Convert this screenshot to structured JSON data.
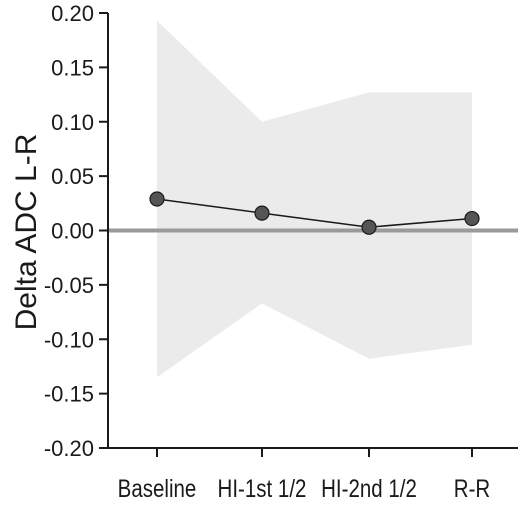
{
  "chart_data": {
    "type": "line",
    "title": "",
    "xlabel": "",
    "ylabel": "Delta ADC L-R",
    "categories": [
      "Baseline",
      "HI-1st 1/2",
      "HI-2nd 1/2",
      "R-R"
    ],
    "series": [
      {
        "values": [
          0.029,
          0.016,
          0.003,
          0.011
        ]
      }
    ],
    "band": {
      "upper": [
        0.193,
        0.1,
        0.127,
        0.127
      ],
      "lower": [
        -0.135,
        -0.067,
        -0.118,
        -0.105
      ]
    },
    "reference_line": 0.0,
    "ylim": [
      -0.2,
      0.2
    ],
    "yticks": [
      "-0.20",
      "-0.15",
      "-0.10",
      "-0.05",
      "0.00",
      "0.05",
      "0.10",
      "0.15",
      "0.20"
    ],
    "grid": false,
    "legend": "none",
    "colors": {
      "band": "#ebebeb",
      "line": "#1a1a1a",
      "marker": "#555555",
      "reference_line": "#9a9a9a",
      "axis": "#1a1a1a"
    }
  }
}
